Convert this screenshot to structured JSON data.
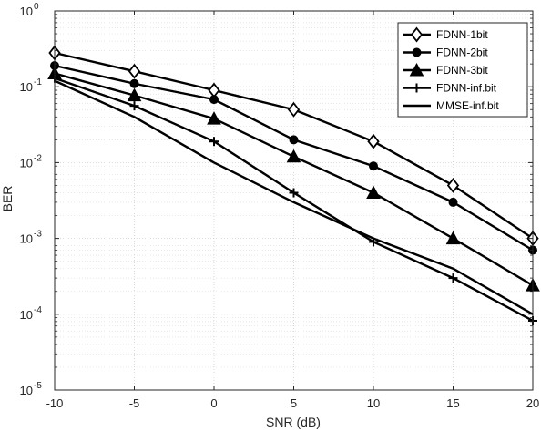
{
  "chart_data": {
    "type": "line",
    "xlabel": "SNR (dB)",
    "ylabel": "BER",
    "x": [
      -10,
      -5,
      0,
      5,
      10,
      15,
      20
    ],
    "xlim": [
      -10,
      20
    ],
    "ylim": [
      1e-05,
      1
    ],
    "yscale": "log",
    "grid": true,
    "legend": "top-right",
    "xticks": [
      -10,
      -5,
      0,
      5,
      10,
      15,
      20
    ],
    "xtick_labels": [
      "-10",
      "-5",
      "0",
      "5",
      "10",
      "15",
      "20"
    ],
    "yticks": [
      1e-05,
      0.0001,
      0.001,
      0.01,
      0.1,
      1
    ],
    "ytick_labels": [
      {
        "base": "10",
        "exp": "-5"
      },
      {
        "base": "10",
        "exp": "-4"
      },
      {
        "base": "10",
        "exp": "-3"
      },
      {
        "base": "10",
        "exp": "-2"
      },
      {
        "base": "10",
        "exp": "-1"
      },
      {
        "base": "10",
        "exp": "0"
      }
    ],
    "series": [
      {
        "name": "FDNN-1bit",
        "marker": "diamond",
        "values": [
          0.28,
          0.16,
          0.09,
          0.05,
          0.019,
          0.005,
          0.001
        ]
      },
      {
        "name": "FDNN-2bit",
        "marker": "circle",
        "values": [
          0.19,
          0.11,
          0.068,
          0.02,
          0.009,
          0.003,
          0.0007
        ]
      },
      {
        "name": "FDNN-3bit",
        "marker": "triangle",
        "values": [
          0.15,
          0.077,
          0.038,
          0.012,
          0.004,
          0.001,
          0.00024
        ]
      },
      {
        "name": "FDNN-inf.bit",
        "marker": "plus",
        "values": [
          0.13,
          0.056,
          0.019,
          0.004,
          0.0009,
          0.0003,
          8.2e-05
        ]
      },
      {
        "name": "MMSE-inf.bit",
        "marker": "none",
        "values": [
          0.12,
          0.04,
          0.01,
          0.003,
          0.001,
          0.0004,
          0.0001
        ]
      }
    ],
    "colors": {
      "line": "#000000",
      "grid": "#dfdfdf",
      "axis": "#262626"
    }
  }
}
